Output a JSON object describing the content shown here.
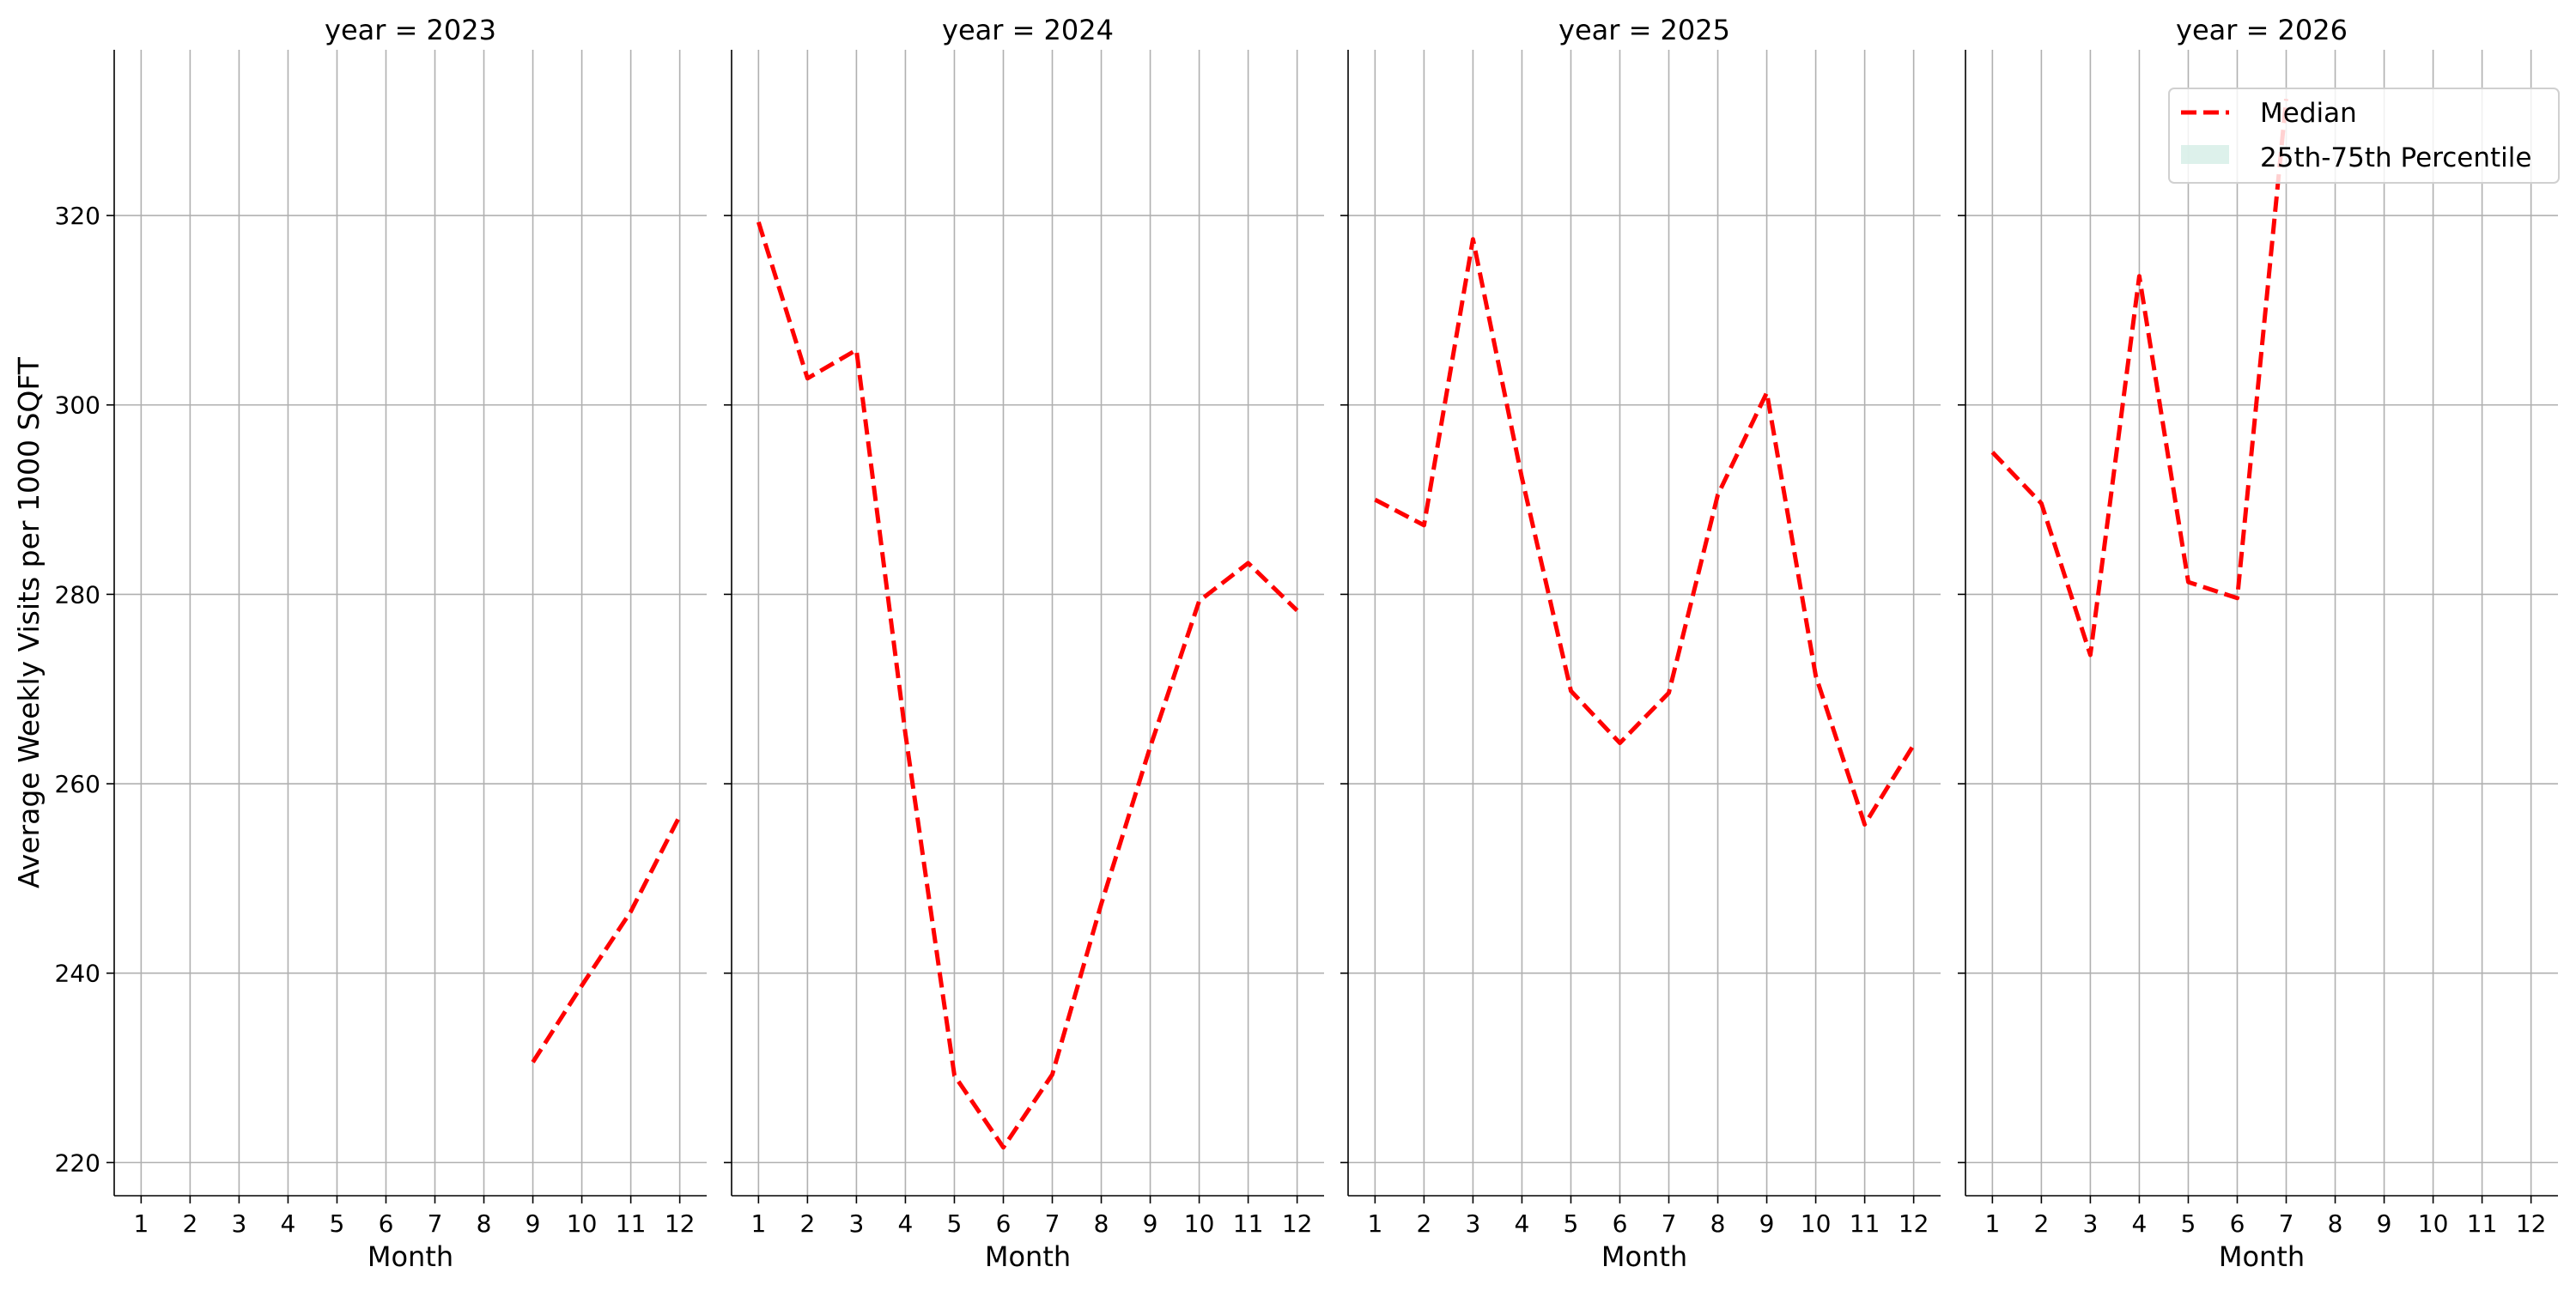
{
  "chart_data": {
    "type": "line",
    "ylabel": "Average Weekly Visits per 1000 SQFT",
    "xlabel": "Month",
    "ylim": [
      216.5,
      337.5
    ],
    "yticks": [
      220,
      240,
      260,
      280,
      300,
      320
    ],
    "xlim": [
      0.45,
      12.55
    ],
    "xticks": [
      1,
      2,
      3,
      4,
      5,
      6,
      7,
      8,
      9,
      10,
      11,
      12
    ],
    "grid": true,
    "legend": {
      "placement": "top-right",
      "entries": [
        "Median",
        "25th-75th Percentile"
      ],
      "median_color": "#ff0000",
      "band_color": "#d7efe7"
    },
    "panels": [
      {
        "title": "year = 2023",
        "x": [
          9,
          10,
          11,
          12
        ],
        "median": [
          230.6,
          238.7,
          246.5,
          256.6
        ]
      },
      {
        "title": "year = 2024",
        "x": [
          1,
          2,
          3,
          4,
          5,
          6,
          7,
          8,
          9,
          10,
          11,
          12
        ],
        "median": [
          319.3,
          302.8,
          305.8,
          265.3,
          229.2,
          221.6,
          229.3,
          247.3,
          263.9,
          279.3,
          283.3,
          278.3
        ]
      },
      {
        "title": "year = 2025",
        "x": [
          1,
          2,
          3,
          4,
          5,
          6,
          7,
          8,
          9,
          10,
          11,
          12
        ],
        "median": [
          290.0,
          287.3,
          317.5,
          292.3,
          269.8,
          264.3,
          269.6,
          290.5,
          301.3,
          271.4,
          255.7,
          264.1
        ]
      },
      {
        "title": "year = 2026",
        "x": [
          1,
          2,
          3,
          4,
          5,
          6,
          7
        ],
        "median": [
          295.0,
          289.6,
          273.6,
          313.6,
          281.3,
          279.6,
          332.3
        ]
      }
    ]
  }
}
